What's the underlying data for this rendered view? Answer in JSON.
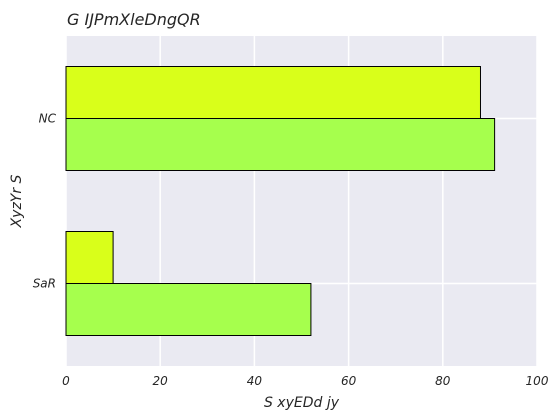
{
  "chart_data": {
    "type": "bar",
    "orientation": "horizontal",
    "title": "G IJPmXleDngQR",
    "xlabel": "S xyEDd jy",
    "ylabel": "XyzYr  S",
    "categories": [
      "NC",
      "SaR"
    ],
    "xlim": [
      0,
      100
    ],
    "xticks": [
      "0",
      "20",
      "40",
      "60",
      "80",
      "100"
    ],
    "grid": true,
    "series": [
      {
        "color": "#d9ff1a",
        "values": [
          88,
          10
        ]
      },
      {
        "color": "#a6ff4d",
        "values": [
          91,
          52
        ]
      }
    ],
    "background": "#eaeaf2",
    "gridline_color": "#ffffff",
    "bar_edge_color": "#000000"
  }
}
